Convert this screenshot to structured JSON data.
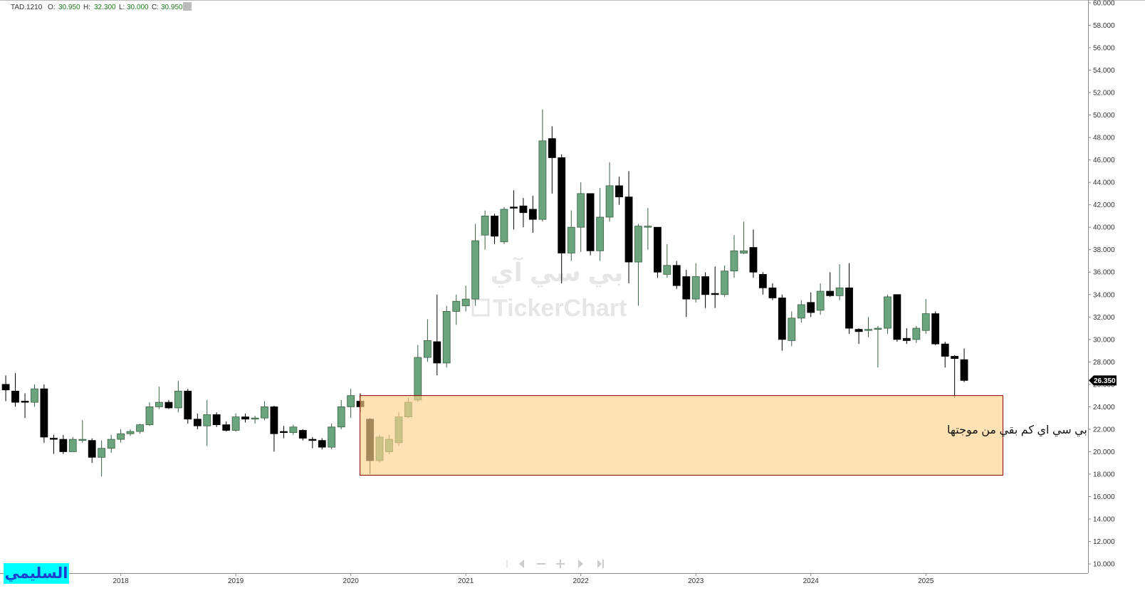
{
  "chart_data": {
    "type": "candlestick",
    "header": {
      "symbol": "TAD.1210",
      "items": [
        {
          "key": "O:",
          "value": "30.950"
        },
        {
          "key": "H:",
          "value": "32.300"
        },
        {
          "key": "L:",
          "value": "30.000"
        },
        {
          "key": "C:",
          "value": "30.950"
        }
      ]
    },
    "watermark": {
      "arabic": "بي سي آي",
      "brand": "TickerChart"
    },
    "author": "السليمي",
    "annotation": "بي سي اي كم بقي من موجتها",
    "zone": {
      "xlim": [
        2020.08,
        2025.67
      ],
      "ylim": [
        17.9,
        25.0
      ],
      "color": "#fdd38a",
      "border": "#8b0000"
    },
    "last_price": {
      "value": 26.35,
      "label": "26.350"
    },
    "up_color": "#6aa57e",
    "down_color": "#000000",
    "xlim": [
      2016.95,
      2026.41
    ],
    "ylim": [
      9.18,
      60.25
    ],
    "xticks": [
      2018,
      2019,
      2020,
      2021,
      2022,
      2023,
      2024,
      2025
    ],
    "yticks": [
      {
        "value": 10,
        "label": "10.000"
      },
      {
        "value": 12,
        "label": "12.000"
      },
      {
        "value": 14,
        "label": "14.000"
      },
      {
        "value": 16,
        "label": "16.000"
      },
      {
        "value": 18,
        "label": "18.000"
      },
      {
        "value": 20,
        "label": "20.000"
      },
      {
        "value": 22,
        "label": "22.000"
      },
      {
        "value": 24,
        "label": "24.000"
      },
      {
        "value": 26,
        "label": "26.000"
      },
      {
        "value": 28,
        "label": "28.000"
      },
      {
        "value": 30,
        "label": "30.000"
      },
      {
        "value": 32,
        "label": "32.000"
      },
      {
        "value": 34,
        "label": "34.000"
      },
      {
        "value": 36,
        "label": "36.000"
      },
      {
        "value": 38,
        "label": "38.000"
      },
      {
        "value": 40,
        "label": "40.000"
      },
      {
        "value": 42,
        "label": "42.000"
      },
      {
        "value": 44,
        "label": "44.000"
      },
      {
        "value": 46,
        "label": "46.000"
      },
      {
        "value": 48,
        "label": "48.000"
      },
      {
        "value": 50,
        "label": "50.000"
      },
      {
        "value": 52,
        "label": "52.000"
      },
      {
        "value": 54,
        "label": "54.000"
      },
      {
        "value": 56,
        "label": "56.000"
      },
      {
        "value": 58,
        "label": "58.000"
      },
      {
        "value": 60,
        "label": "60.000"
      }
    ],
    "x": [
      2017.0,
      2017.083,
      2017.167,
      2017.25,
      2017.333,
      2017.417,
      2017.5,
      2017.583,
      2017.667,
      2017.75,
      2017.833,
      2017.917,
      2018.0,
      2018.083,
      2018.167,
      2018.25,
      2018.333,
      2018.417,
      2018.5,
      2018.583,
      2018.667,
      2018.75,
      2018.833,
      2018.917,
      2019.0,
      2019.083,
      2019.167,
      2019.25,
      2019.333,
      2019.417,
      2019.5,
      2019.583,
      2019.667,
      2019.75,
      2019.833,
      2019.917,
      2020.0,
      2020.083,
      2020.167,
      2020.25,
      2020.333,
      2020.417,
      2020.5,
      2020.583,
      2020.667,
      2020.75,
      2020.833,
      2020.917,
      2021.0,
      2021.083,
      2021.167,
      2021.25,
      2021.333,
      2021.417,
      2021.5,
      2021.583,
      2021.667,
      2021.75,
      2021.833,
      2021.917,
      2022.0,
      2022.083,
      2022.167,
      2022.25,
      2022.333,
      2022.417,
      2022.5,
      2022.583,
      2022.667,
      2022.75,
      2022.833,
      2022.917,
      2023.0,
      2023.083,
      2023.167,
      2023.25,
      2023.333,
      2023.417,
      2023.5,
      2023.583,
      2023.667,
      2023.75,
      2023.833,
      2023.917,
      2024.0,
      2024.083,
      2024.167,
      2024.25,
      2024.333,
      2024.417,
      2024.5,
      2024.583,
      2024.667,
      2024.75,
      2024.833,
      2024.917,
      2025.0,
      2025.083,
      2025.167,
      2025.25,
      2025.333
    ],
    "open": [
      26.0,
      25.4,
      24.5,
      24.4,
      25.6,
      21.2,
      21.1,
      20.0,
      21.0,
      21.0,
      19.5,
      20.3,
      21.1,
      21.6,
      21.8,
      22.4,
      24.0,
      24.4,
      23.9,
      25.4,
      22.9,
      22.3,
      23.3,
      22.4,
      21.9,
      23.1,
      22.9,
      23.0,
      24.0,
      21.8,
      21.7,
      21.9,
      21.1,
      21.0,
      20.4,
      22.2,
      24.0,
      24.5,
      22.9,
      19.2,
      20.0,
      20.8,
      23.1,
      24.6,
      28.4,
      29.8,
      27.9,
      32.5,
      33.0,
      33.6,
      39.3,
      41.0,
      38.7,
      41.8,
      41.9,
      41.6,
      40.7,
      47.9,
      46.2,
      37.7,
      40.0,
      43.0,
      37.9,
      40.9,
      43.7,
      42.7,
      36.9,
      40.0,
      40.0,
      35.8,
      36.6,
      35.6,
      33.6,
      35.6,
      34.1,
      34.0,
      36.1,
      37.7,
      38.2,
      35.8,
      34.6,
      33.7,
      29.9,
      31.9,
      33.3,
      32.6,
      34.3,
      33.9,
      34.6,
      30.9,
      30.8,
      30.9,
      31.0,
      34.0,
      30.1,
      30.0,
      30.8,
      32.3,
      29.6,
      28.5,
      28.2
    ],
    "high": [
      26.8,
      27.0,
      25.2,
      26.0,
      26.0,
      21.5,
      21.5,
      21.3,
      22.8,
      21.2,
      21.0,
      21.5,
      22.0,
      22.0,
      22.5,
      24.4,
      25.8,
      24.6,
      26.3,
      25.6,
      23.4,
      24.6,
      23.5,
      22.7,
      23.4,
      23.4,
      23.2,
      24.5,
      24.1,
      22.3,
      22.4,
      22.0,
      21.3,
      21.2,
      22.5,
      24.6,
      25.6,
      25.2,
      23.0,
      21.5,
      21.5,
      23.5,
      24.8,
      29.5,
      31.8,
      34.0,
      33.0,
      34.0,
      34.8,
      40.3,
      41.5,
      41.2,
      41.8,
      43.3,
      42.6,
      42.8,
      50.5,
      49.0,
      46.5,
      41.5,
      44.0,
      43.0,
      43.5,
      45.8,
      44.5,
      45.0,
      40.3,
      41.7,
      40.0,
      38.5,
      37.0,
      36.2,
      36.8,
      36.0,
      36.5,
      36.6,
      39.3,
      40.5,
      39.8,
      36.0,
      35.0,
      34.0,
      32.5,
      33.5,
      34.2,
      35.0,
      36.0,
      36.7,
      36.8,
      31.0,
      32.0,
      31.2,
      34.0,
      34.0,
      31.0,
      31.2,
      33.6,
      32.5,
      29.8,
      28.6,
      29.2
    ],
    "low": [
      24.5,
      24.0,
      23.0,
      24.0,
      20.8,
      19.8,
      19.8,
      20.0,
      20.8,
      19.0,
      17.8,
      19.9,
      20.8,
      21.4,
      21.6,
      22.3,
      23.8,
      23.8,
      23.5,
      22.5,
      22.0,
      20.5,
      22.2,
      21.8,
      21.8,
      22.6,
      22.5,
      22.8,
      20.0,
      21.2,
      21.5,
      21.0,
      20.3,
      20.2,
      20.2,
      22.0,
      23.0,
      23.5,
      18.0,
      19.0,
      19.8,
      20.5,
      23.0,
      24.4,
      28.0,
      26.8,
      27.5,
      31.3,
      32.5,
      33.0,
      38.0,
      38.5,
      38.5,
      39.8,
      40.0,
      39.5,
      40.5,
      43.0,
      35.0,
      37.0,
      37.8,
      37.5,
      37.0,
      40.5,
      42.0,
      35.0,
      33.0,
      38.0,
      35.5,
      35.5,
      34.5,
      32.0,
      33.3,
      32.8,
      32.8,
      33.8,
      35.5,
      37.6,
      35.5,
      34.0,
      33.5,
      29.0,
      29.4,
      31.5,
      32.0,
      32.2,
      33.8,
      33.5,
      30.5,
      29.6,
      30.2,
      27.5,
      30.5,
      29.8,
      29.6,
      29.7,
      30.5,
      29.5,
      27.5,
      24.8,
      26.2
    ],
    "close": [
      25.5,
      24.4,
      24.4,
      25.6,
      21.3,
      21.1,
      20.0,
      21.1,
      21.1,
      19.5,
      20.3,
      21.1,
      21.6,
      21.8,
      22.4,
      24.0,
      24.4,
      23.9,
      25.4,
      22.9,
      22.3,
      23.3,
      22.4,
      21.9,
      23.1,
      22.9,
      23.0,
      24.0,
      21.6,
      21.7,
      22.2,
      21.2,
      21.0,
      20.4,
      22.2,
      24.0,
      25.0,
      24.0,
      19.2,
      21.3,
      21.1,
      23.1,
      24.4,
      28.4,
      29.9,
      27.9,
      32.5,
      33.4,
      33.6,
      38.8,
      41.0,
      39.2,
      41.6,
      41.7,
      41.3,
      40.7,
      47.7,
      46.2,
      37.7,
      40.0,
      43.0,
      37.9,
      40.9,
      43.7,
      42.7,
      36.9,
      40.1,
      40.1,
      36.0,
      36.6,
      34.8,
      33.6,
      35.6,
      34.0,
      34.0,
      36.1,
      37.9,
      37.9,
      36.0,
      34.6,
      33.7,
      30.0,
      31.9,
      33.1,
      32.4,
      34.3,
      33.9,
      34.6,
      31.0,
      30.7,
      30.9,
      31.0,
      33.8,
      30.0,
      29.9,
      31.0,
      32.3,
      29.6,
      28.5,
      28.3,
      26.35
    ]
  }
}
